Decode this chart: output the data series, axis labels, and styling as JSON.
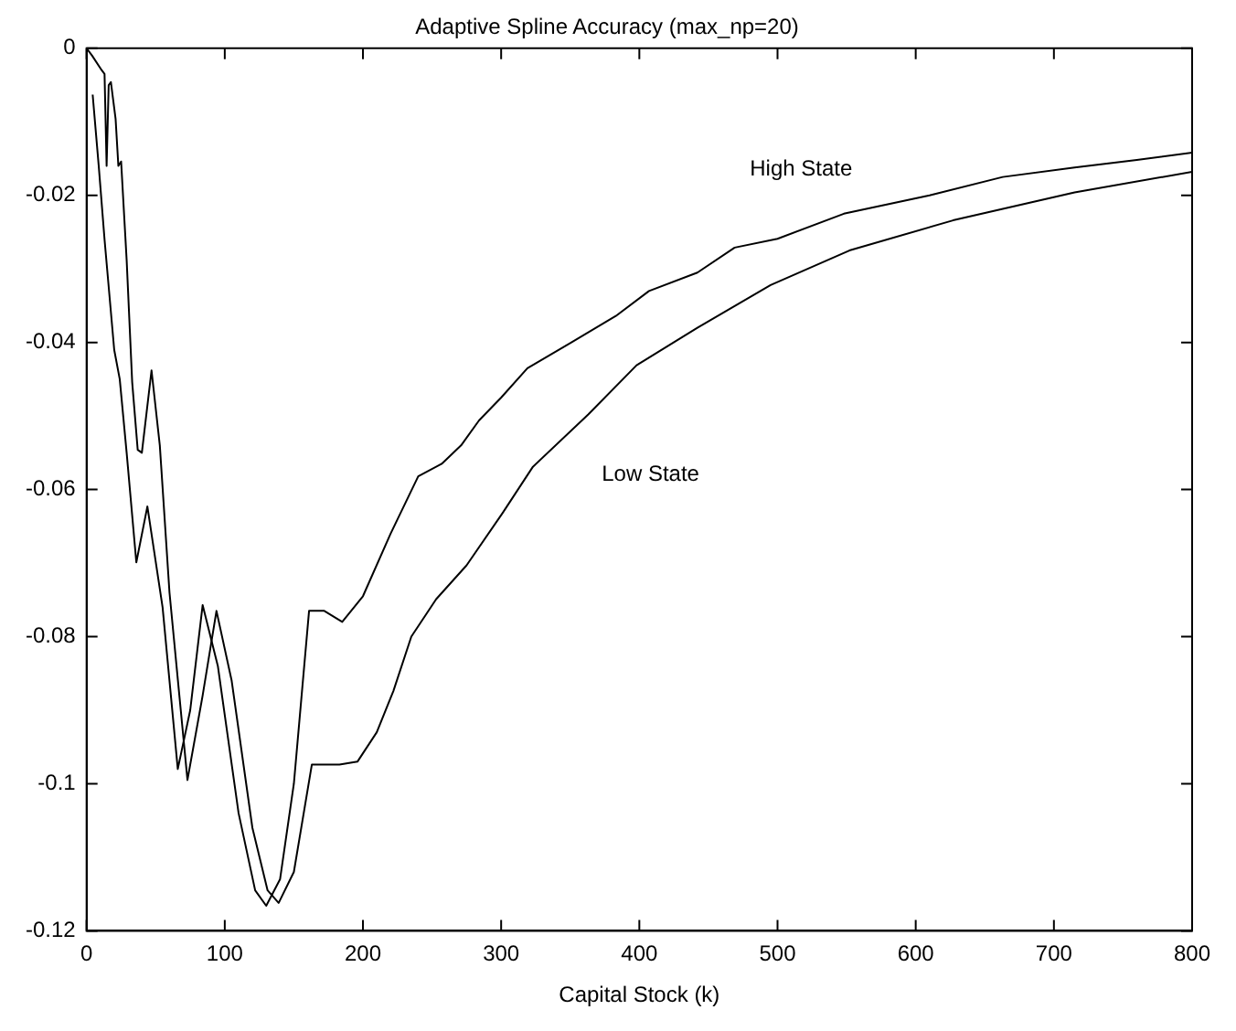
{
  "chart_data": {
    "type": "line",
    "title": "Adaptive Spline Accuracy (max_np=20)",
    "xlabel": "Capital Stock (k)",
    "xlim": [
      0,
      800
    ],
    "xticks": [
      0,
      100,
      200,
      300,
      400,
      500,
      600,
      700,
      800
    ],
    "ylim": [
      -0.12,
      0
    ],
    "yticks": [
      -0.12,
      -0.1,
      -0.08,
      -0.06,
      -0.04,
      -0.02,
      0
    ],
    "grid": false,
    "legend": false,
    "marker": "none",
    "line_style": "solid",
    "series": [
      {
        "color": "#000000",
        "x": [
          4.4,
          8.8,
          13,
          20,
          24,
          29,
          36,
          44,
          55,
          66,
          75,
          84,
          95,
          110,
          122,
          130,
          140,
          150,
          161,
          172,
          185,
          200,
          220,
          240,
          257,
          271,
          284,
          300,
          319,
          350,
          383,
          407,
          442,
          469,
          500,
          548,
          610,
          663,
          715,
          760,
          800
        ],
        "values": [
          -0.0063,
          -0.016,
          -0.026,
          -0.041,
          -0.045,
          -0.055,
          -0.0699,
          -0.0623,
          -0.076,
          -0.098,
          -0.09,
          -0.0757,
          -0.084,
          -0.104,
          -0.1145,
          -0.1166,
          -0.113,
          -0.1,
          -0.0765,
          -0.0765,
          -0.078,
          -0.0745,
          -0.066,
          -0.0582,
          -0.0565,
          -0.054,
          -0.0506,
          -0.0475,
          -0.0435,
          -0.0401,
          -0.0364,
          -0.033,
          -0.0305,
          -0.0271,
          -0.0259,
          -0.0225,
          -0.02,
          -0.0175,
          -0.0162,
          -0.0152,
          -0.0142
        ]
      },
      {
        "color": "#000000",
        "x": [
          0,
          4,
          11,
          13,
          14.5,
          16,
          17.6,
          21,
          23,
          25,
          29,
          33,
          37,
          40,
          47,
          53,
          60,
          73,
          84,
          94,
          105,
          120,
          131,
          139,
          150,
          163,
          183,
          196,
          210,
          222,
          235,
          253,
          275,
          301,
          323,
          363,
          398,
          442,
          495,
          552,
          627,
          715,
          800
        ],
        "values": [
          0,
          -0.001,
          -0.003,
          -0.0035,
          -0.016,
          -0.005,
          -0.0046,
          -0.0096,
          -0.016,
          -0.0154,
          -0.0288,
          -0.0454,
          -0.0546,
          -0.055,
          -0.0438,
          -0.054,
          -0.074,
          -0.0995,
          -0.088,
          -0.0765,
          -0.086,
          -0.106,
          -0.1145,
          -0.1162,
          -0.112,
          -0.0974,
          -0.0974,
          -0.097,
          -0.093,
          -0.0874,
          -0.08,
          -0.0749,
          -0.0703,
          -0.0632,
          -0.0569,
          -0.0498,
          -0.0431,
          -0.038,
          -0.0322,
          -0.0275,
          -0.0234,
          -0.0196,
          -0.0168
        ]
      }
    ],
    "annotations": [
      "High State",
      "Low State"
    ]
  }
}
